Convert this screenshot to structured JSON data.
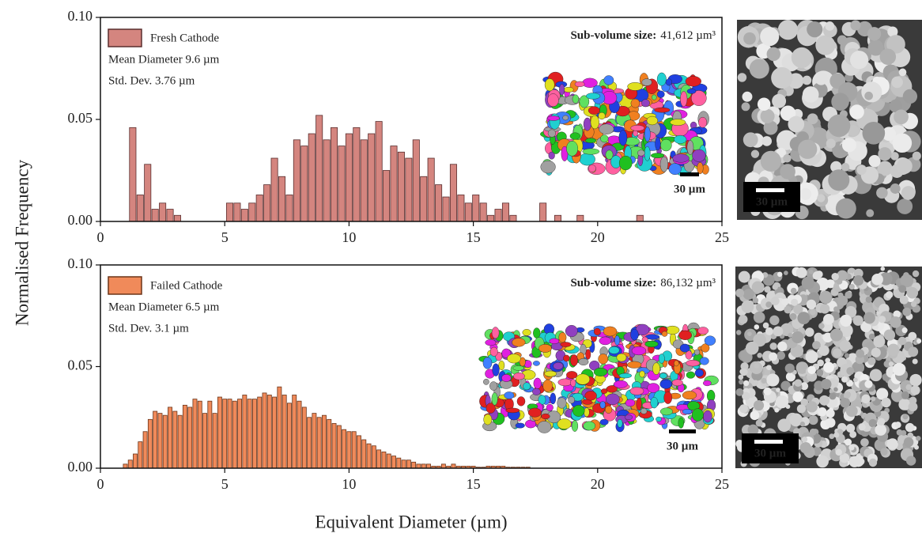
{
  "figure": {
    "ylabel": "Normalised Frequency",
    "xlabel": "Equivalent Diameter (µm)"
  },
  "chart_data": [
    {
      "type": "histogram",
      "series": [
        {
          "name": "Fresh Cathode",
          "color": "#d4857f",
          "edgecolor": "#5a2e2e"
        }
      ],
      "annotations": [
        "Mean Diameter 9.6 µm",
        "Std. Dev. 3.76 µm"
      ],
      "subvolume_label": "Sub-volume size:",
      "subvolume_value": "41,612 µm³",
      "inset_scale_label": "30 µm",
      "image_scale_label": "30 µm",
      "bins": [
        1.15,
        1.45,
        1.75,
        2.05,
        2.35,
        2.65,
        2.95,
        3.25,
        3.55,
        3.85,
        4.15,
        4.45,
        4.75,
        5.05,
        5.35,
        5.65,
        5.95,
        6.25,
        6.55,
        6.85,
        7.15,
        7.45,
        7.75,
        8.05,
        8.35,
        8.65,
        8.95,
        9.25,
        9.55,
        9.85,
        10.15,
        10.45,
        10.75,
        11.05,
        11.35,
        11.65,
        11.95,
        12.25,
        12.55,
        12.85,
        13.15,
        13.45,
        13.75,
        14.05,
        14.35,
        14.65,
        14.95,
        15.25,
        15.55,
        15.85,
        16.15,
        16.45,
        16.75,
        17.05,
        17.35,
        17.65,
        17.95,
        18.25,
        18.55,
        18.85,
        19.15,
        19.45,
        19.75,
        20.05,
        20.35,
        20.65,
        20.95,
        21.25,
        21.55,
        21.85
      ],
      "values": [
        0.046,
        0.013,
        0.028,
        0.006,
        0.009,
        0.006,
        0.003,
        0,
        0,
        0,
        0,
        0,
        0,
        0.009,
        0.009,
        0.006,
        0.009,
        0.013,
        0.018,
        0.031,
        0.022,
        0.013,
        0.04,
        0.037,
        0.043,
        0.052,
        0.04,
        0.046,
        0.037,
        0.043,
        0.046,
        0.04,
        0.043,
        0.049,
        0.025,
        0.037,
        0.034,
        0.031,
        0.04,
        0.022,
        0.031,
        0.018,
        0.012,
        0.028,
        0.013,
        0.009,
        0.013,
        0.009,
        0.003,
        0.006,
        0.009,
        0.003,
        0,
        0,
        0,
        0.009,
        0,
        0.003,
        0,
        0,
        0.003,
        0,
        0,
        0,
        0,
        0,
        0,
        0,
        0.003
      ],
      "xlim": [
        0,
        25
      ],
      "xticks": [
        0,
        5,
        10,
        15,
        20,
        25
      ],
      "ylim": [
        0,
        0.1
      ],
      "yticks": [
        {
          "value": 0,
          "label": "0.00"
        },
        {
          "value": 0.05,
          "label": "0.05"
        },
        {
          "value": 0.1,
          "label": "0.10"
        }
      ]
    },
    {
      "type": "histogram",
      "series": [
        {
          "name": "Failed Cathode",
          "color": "#f08a5a",
          "edgecolor": "#6b3418"
        }
      ],
      "annotations": [
        "Mean Diameter 6.5 µm",
        "Std. Dev. 3.1 µm"
      ],
      "subvolume_label": "Sub-volume size:",
      "subvolume_value": "86,132 µm³",
      "inset_scale_label": "30 µm",
      "image_scale_label": "30 µm",
      "bins": [
        0.9,
        1.1,
        1.3,
        1.5,
        1.7,
        1.9,
        2.1,
        2.3,
        2.5,
        2.7,
        2.9,
        3.1,
        3.3,
        3.5,
        3.7,
        3.9,
        4.1,
        4.3,
        4.5,
        4.7,
        4.9,
        5.1,
        5.3,
        5.5,
        5.7,
        5.9,
        6.1,
        6.3,
        6.5,
        6.7,
        6.9,
        7.1,
        7.3,
        7.5,
        7.7,
        7.9,
        8.1,
        8.3,
        8.5,
        8.7,
        8.9,
        9.1,
        9.3,
        9.5,
        9.7,
        9.9,
        10.1,
        10.3,
        10.5,
        10.7,
        10.9,
        11.1,
        11.3,
        11.5,
        11.7,
        11.9,
        12.1,
        12.3,
        12.5,
        12.7,
        12.9,
        13.1,
        13.3,
        13.5,
        13.7,
        13.9,
        14.1,
        14.3,
        14.5,
        14.7,
        14.9,
        15.1,
        15.3,
        15.5,
        15.7,
        15.9,
        16.1,
        16.3,
        16.5,
        16.7,
        16.9,
        17.1,
        17.3
      ],
      "values": [
        0.002,
        0.004,
        0.007,
        0.013,
        0.018,
        0.024,
        0.028,
        0.027,
        0.026,
        0.03,
        0.028,
        0.026,
        0.031,
        0.03,
        0.034,
        0.033,
        0.027,
        0.033,
        0.027,
        0.035,
        0.034,
        0.034,
        0.033,
        0.034,
        0.036,
        0.034,
        0.034,
        0.035,
        0.037,
        0.036,
        0.035,
        0.04,
        0.036,
        0.032,
        0.036,
        0.033,
        0.03,
        0.025,
        0.027,
        0.025,
        0.026,
        0.024,
        0.022,
        0.021,
        0.019,
        0.018,
        0.018,
        0.016,
        0.014,
        0.012,
        0.011,
        0.009,
        0.008,
        0.007,
        0.006,
        0.005,
        0.004,
        0.004,
        0.003,
        0.002,
        0.002,
        0.002,
        0.001,
        0.001,
        0.002,
        0.001,
        0.002,
        0.001,
        0.001,
        0.001,
        0.001,
        0.0005,
        0.0005,
        0.001,
        0.001,
        0.001,
        0.001,
        0.0005,
        0.0005,
        0.0005,
        0.0005,
        0.0005
      ],
      "xlim": [
        0,
        25
      ],
      "xticks": [
        0,
        5,
        10,
        15,
        20,
        25
      ],
      "ylim": [
        0,
        0.1
      ],
      "yticks": [
        {
          "value": 0,
          "label": "0.00"
        },
        {
          "value": 0.05,
          "label": "0.05"
        },
        {
          "value": 0.1,
          "label": "0.10"
        }
      ]
    }
  ]
}
